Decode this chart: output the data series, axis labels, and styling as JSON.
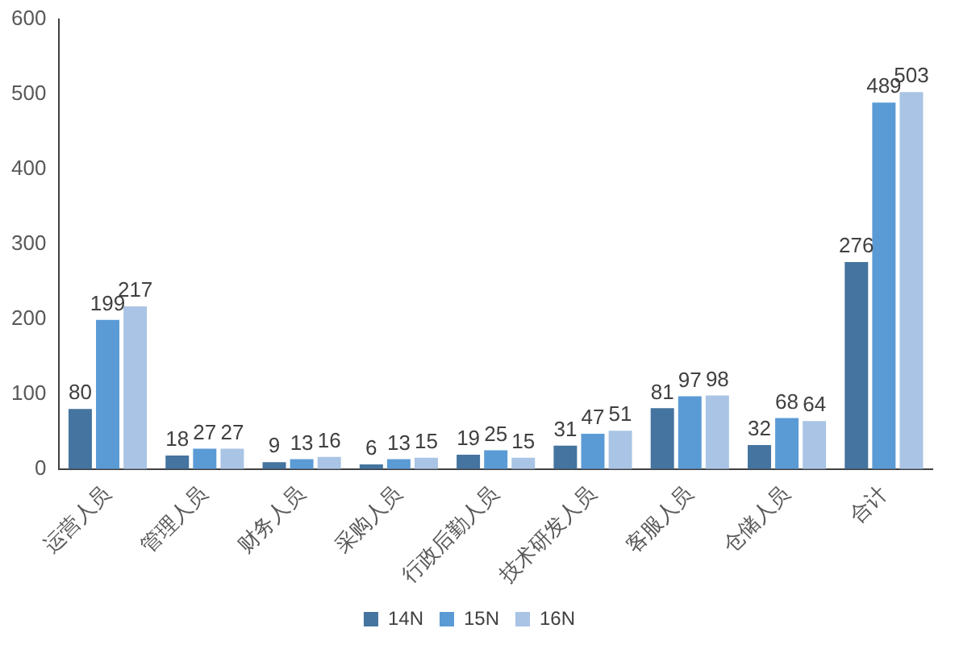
{
  "chart_data": {
    "type": "bar",
    "categories": [
      "运营人员",
      "管理人员",
      "财务人员",
      "采购人员",
      "行政后勤人员",
      "技术研发人员",
      "客服人员",
      "仓储人员",
      "合计"
    ],
    "series": [
      {
        "name": "14N",
        "color": "#44749f",
        "values": [
          80,
          18,
          9,
          6,
          19,
          31,
          81,
          32,
          276
        ]
      },
      {
        "name": "15N",
        "color": "#5b9bd5",
        "values": [
          199,
          27,
          13,
          13,
          25,
          47,
          97,
          68,
          489
        ]
      },
      {
        "name": "16N",
        "color": "#a9c4e4",
        "values": [
          217,
          27,
          16,
          15,
          15,
          51,
          98,
          64,
          503
        ]
      }
    ],
    "ylim": [
      0,
      600
    ],
    "yticks": [
      0,
      100,
      200,
      300,
      400,
      500,
      600
    ],
    "grid": false,
    "legend": "bottom",
    "data_labels": true
  }
}
